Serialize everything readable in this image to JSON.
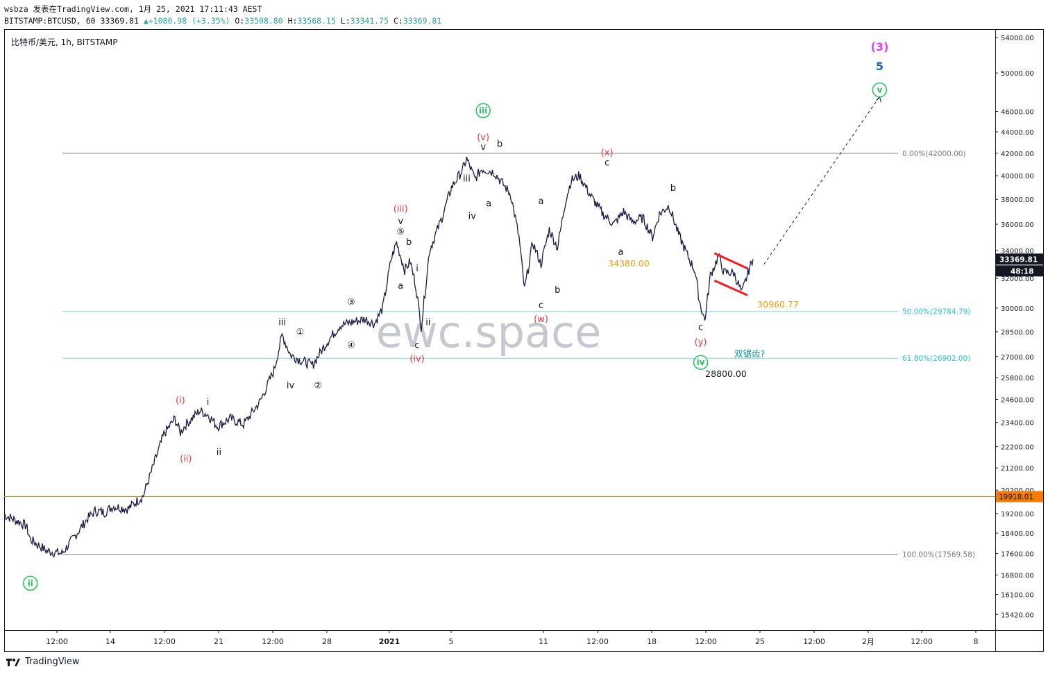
{
  "header": {
    "line1": "wsbza 发表在TradingView.com, 1月 25, 2021 17:11:43 AEST",
    "symbol": "BITSTAMP:BTCUSD, 60",
    "last": "33369.81",
    "change_icon": "triangle-up-icon",
    "change": "+1080.98 (+3.35%)",
    "o_label": "O:",
    "o": "33508.80",
    "h_label": "H:",
    "h": "33568.15",
    "l_label": "L:",
    "l": "33341.75",
    "c_label": "C:",
    "c": "33369.81"
  },
  "legend": "比特币/美元, 1h, BITSTAMP",
  "watermark": "ewc.space",
  "footer": {
    "brand": "TradingView",
    "logo_icon": "tradingview-logo-icon"
  },
  "colors": {
    "candles": "#1c1a45",
    "fib_gray": "#787b86",
    "fib_cyan": "#7fd6e0",
    "fib_text_orange": "#9598a1",
    "orange_line": "#f57c00",
    "red_label": "#e53935",
    "green_label": "#4caf50",
    "magenta": "#e040fb",
    "blue": "#1565c0",
    "price_tag": "#131722",
    "channel_red": "#ff1a1a",
    "annotation_orange": "#f59e0b"
  },
  "chart_data": {
    "type": "line",
    "title": "比特币/美元, 1h, BITSTAMP",
    "y_scale": "log",
    "ylim": [
      14900,
      55000
    ],
    "y_ticks": [
      "54000.00",
      "50000.00",
      "46000.00",
      "44000.00",
      "42000.00",
      "40000.00",
      "38000.00",
      "36000.00",
      "34000.00",
      "32000.00",
      "30000.00",
      "28500.00",
      "27000.00",
      "25800.00",
      "24600.00",
      "23400.00",
      "22200.00",
      "21200.00",
      "20200.00",
      "19200.00",
      "18400.00",
      "17600.00",
      "16800.00",
      "16100.00",
      "15420.00"
    ],
    "x_ticks": [
      "12:00",
      "14",
      "12:00",
      "21",
      "12:00",
      "28",
      "2021",
      "5",
      "11",
      "12:00",
      "18",
      "12:00",
      "25",
      "12:00",
      "2月",
      "12:00",
      "8"
    ],
    "x_range": [
      "2020-12-11",
      "2021-02-09"
    ],
    "series": [
      {
        "values_note": "hourly close path approximated from the chart",
        "x": [
          "2020-12-11 00:00",
          "2020-12-11 18:00",
          "2020-12-12 08:00",
          "2020-12-12 14:00",
          "2020-12-13 14:00",
          "2020-12-14 12:00",
          "2020-12-15 06:00",
          "2020-12-16 00:00",
          "2020-12-16 12:00",
          "2020-12-17 02:00",
          "2020-12-17 14:00",
          "2020-12-18 12:00",
          "2020-12-19 10:00",
          "2020-12-20 16:00",
          "2020-12-21 08:00",
          "2020-12-21 16:00",
          "2020-12-22 00:00",
          "2020-12-22 20:00",
          "2020-12-23 08:00",
          "2020-12-23 22:00",
          "2020-12-24 16:00",
          "2020-12-25 12:00",
          "2020-12-26 12:00",
          "2020-12-27 08:00",
          "2020-12-27 20:00",
          "2020-12-28 08:00",
          "2020-12-28 22:00",
          "2020-12-29 16:00",
          "2020-12-30 12:00",
          "2020-12-31 08:00",
          "2021-01-01 20:00",
          "2021-01-02 10:00",
          "2021-01-02 22:00",
          "2021-01-03 10:00",
          "2021-01-03 18:00",
          "2021-01-04 06:00",
          "2021-01-04 14:00",
          "2021-01-04 22:00",
          "2021-01-05 06:00",
          "2021-01-05 18:00",
          "2021-01-06 12:00",
          "2021-01-07 02:00",
          "2021-01-07 18:00",
          "2021-01-08 00:00",
          "2021-01-08 12:00",
          "2021-01-08 22:00",
          "2021-01-09 16:00",
          "2021-01-10 16:00",
          "2021-01-11 04:00",
          "2021-01-11 12:00",
          "2021-01-12 00:00",
          "2021-01-12 12:00",
          "2021-01-13 00:00",
          "2021-01-13 12:00",
          "2021-01-14 00:00",
          "2021-01-14 08:00",
          "2021-01-14 20:00",
          "2021-01-15 12:00",
          "2021-01-16 06:00",
          "2021-01-16 22:00",
          "2021-01-17 12:00",
          "2021-01-18 00:00",
          "2021-01-18 16:00",
          "2021-01-19 06:00",
          "2021-01-19 16:00",
          "2021-01-20 06:00",
          "2021-01-20 20:00",
          "2021-01-21 10:00",
          "2021-01-21 20:00",
          "2021-01-22 02:00",
          "2021-01-22 10:00",
          "2021-01-22 18:00",
          "2021-01-23 06:00",
          "2021-01-23 14:00",
          "2021-01-24 04:00",
          "2021-01-24 16:00",
          "2021-01-25 02:00",
          "2021-01-25 08:00"
        ],
        "y": [
          19150,
          18900,
          18700,
          18150,
          17700,
          17600,
          18250,
          18950,
          19300,
          19250,
          19500,
          19400,
          19950,
          22800,
          23600,
          22900,
          23300,
          24000,
          23800,
          23200,
          23600,
          23300,
          24500,
          26200,
          28300,
          27100,
          26800,
          26500,
          27800,
          28900,
          29300,
          29000,
          30000,
          33300,
          34600,
          32600,
          33200,
          31500,
          28800,
          34000,
          36500,
          39000,
          40500,
          41500,
          39700,
          40600,
          40300,
          38400,
          35000,
          31200,
          34600,
          33000,
          35600,
          34200,
          38000,
          39600,
          40000,
          38300,
          36800,
          36000,
          37000,
          36200,
          36500,
          35000,
          36800,
          37500,
          35200,
          33500,
          32500,
          30500,
          29200,
          32200,
          33600,
          32400,
          32400,
          31000,
          32600,
          33369.81
        ]
      }
    ],
    "levels": [
      {
        "label": "0.00%(42000.00)",
        "value": 42000
      },
      {
        "label": "50.00%(29784.79)",
        "value": 29784.79
      },
      {
        "label": "61.80%(26902.00)",
        "value": 26902.0
      },
      {
        "label": "100.00%(17569.58)",
        "value": 17569.58
      }
    ],
    "horizontal_line": {
      "value": 19918.01,
      "label": "19918.01"
    },
    "price_tag": {
      "value": "33369.81",
      "countdown": "48:18"
    },
    "price_annotations": [
      "34380.00",
      "30960.77",
      "28800.00"
    ],
    "text_note": "双锯齿?",
    "wave_labels": [
      {
        "t": "ii",
        "style": "green-circle",
        "x": "2020-12-12 14:00",
        "y": 16400
      },
      {
        "t": "(i)",
        "style": "red",
        "x": "2020-12-21 16:00",
        "y": 24400
      },
      {
        "t": "(ii)",
        "style": "red",
        "x": "2020-12-22 00:00",
        "y": 21500
      },
      {
        "t": "i",
        "style": "black",
        "x": "2020-12-23 08:00",
        "y": 24300
      },
      {
        "t": "ii",
        "style": "black",
        "x": "2020-12-24 00:00",
        "y": 21800
      },
      {
        "t": "iii",
        "style": "black",
        "x": "2020-12-27 20:00",
        "y": 28900
      },
      {
        "t": "iv",
        "style": "black",
        "x": "2020-12-28 08:00",
        "y": 25200
      },
      {
        "t": "①",
        "style": "black",
        "x": "2020-12-28 22:00",
        "y": 28300
      },
      {
        "t": "②",
        "style": "black",
        "x": "2020-12-30 00:00",
        "y": 25200
      },
      {
        "t": "③",
        "style": "black",
        "x": "2021-01-01 00:00",
        "y": 30200
      },
      {
        "t": "④",
        "style": "black",
        "x": "2021-01-01 00:00",
        "y": 27500
      },
      {
        "t": "⑤",
        "style": "black",
        "x": "2021-01-04 00:00",
        "y": 35200
      },
      {
        "t": "v",
        "style": "black",
        "x": "2021-01-04 00:00",
        "y": 36000
      },
      {
        "t": "(iii)",
        "style": "red",
        "x": "2021-01-04 00:00",
        "y": 37000
      },
      {
        "t": "b",
        "style": "black",
        "x": "2021-01-04 12:00",
        "y": 34400
      },
      {
        "t": "a",
        "style": "black",
        "x": "2021-01-04 00:00",
        "y": 31300
      },
      {
        "t": "i",
        "style": "black",
        "x": "2021-01-05 00:00",
        "y": 32500
      },
      {
        "t": "ii",
        "style": "black",
        "x": "2021-01-05 16:00",
        "y": 28900
      },
      {
        "t": "c",
        "style": "black",
        "x": "2021-01-05 00:00",
        "y": 27500
      },
      {
        "t": "(iv)",
        "style": "red",
        "x": "2021-01-05 00:00",
        "y": 26700
      },
      {
        "t": "iii",
        "style": "black",
        "x": "2021-01-08 00:00",
        "y": 39500
      },
      {
        "t": "iv",
        "style": "black",
        "x": "2021-01-08 08:00",
        "y": 36400
      },
      {
        "t": "a",
        "style": "black",
        "x": "2021-01-09 08:00",
        "y": 37400
      },
      {
        "t": "v",
        "style": "black",
        "x": "2021-01-09 00:00",
        "y": 42300
      },
      {
        "t": "(v)",
        "style": "red",
        "x": "2021-01-09 00:00",
        "y": 43200
      },
      {
        "t": "iii",
        "style": "green-circle",
        "x": "2021-01-09 00:00",
        "y": 45800
      },
      {
        "t": "b",
        "style": "black",
        "x": "2021-01-10 00:00",
        "y": 42600
      },
      {
        "t": "a",
        "style": "black",
        "x": "2021-01-12 12:00",
        "y": 37600
      },
      {
        "t": "b",
        "style": "black",
        "x": "2021-01-13 12:00",
        "y": 31000
      },
      {
        "t": "c",
        "style": "black",
        "x": "2021-01-12 12:00",
        "y": 30000
      },
      {
        "t": "(w)",
        "style": "red",
        "x": "2021-01-12 12:00",
        "y": 29100
      },
      {
        "t": "(x)",
        "style": "red",
        "x": "2021-01-16 12:00",
        "y": 41800
      },
      {
        "t": "c",
        "style": "black",
        "x": "2021-01-16 12:00",
        "y": 40900
      },
      {
        "t": "a",
        "style": "black",
        "x": "2021-01-17 08:00",
        "y": 33700
      },
      {
        "t": "b",
        "style": "black",
        "x": "2021-01-20 12:00",
        "y": 38700
      },
      {
        "t": "c",
        "style": "black",
        "x": "2021-01-22 04:00",
        "y": 28600
      },
      {
        "t": "(y)",
        "style": "red",
        "x": "2021-01-22 04:00",
        "y": 27700
      },
      {
        "t": "iv",
        "style": "green-circle",
        "x": "2021-01-22 04:00",
        "y": 26500
      },
      {
        "t": "(3)",
        "style": "magenta",
        "x": "2021-02-02 00:00",
        "y": 52500
      },
      {
        "t": "5",
        "style": "blue",
        "x": "2021-02-02 00:00",
        "y": 50300
      },
      {
        "t": "v",
        "style": "green-circle",
        "x": "2021-02-02 00:00",
        "y": 47900
      }
    ],
    "projection": {
      "from": {
        "x": "2021-01-26 00:00",
        "y": 33000
      },
      "to": {
        "x": "2021-02-02 00:00",
        "y": 47500
      },
      "style": "dashed"
    },
    "channel": [
      {
        "from": {
          "x": "2021-01-23 00:00",
          "y": 33800
        },
        "to": {
          "x": "2021-01-25 00:00",
          "y": 32700
        }
      },
      {
        "from": {
          "x": "2021-01-23 00:00",
          "y": 31850
        },
        "to": {
          "x": "2021-01-25 00:00",
          "y": 30850
        }
      }
    ]
  }
}
